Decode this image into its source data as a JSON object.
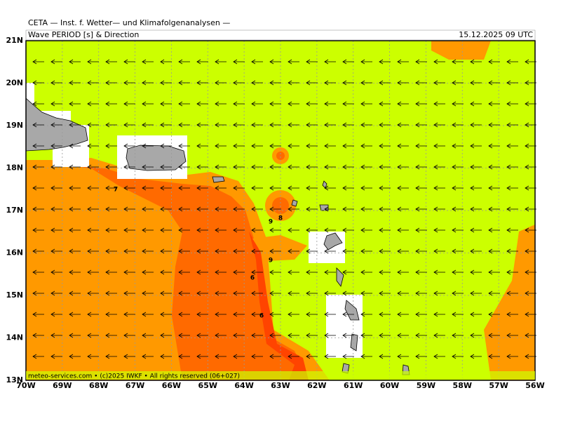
{
  "map": {
    "header": "CETA — Inst. f. Wetter— und Klimafolgenanalysen —",
    "title": "Wave PERIOD [s] & Direction",
    "timestamp": "15.12.2025 09 UTC",
    "footer": "meteo-services.com • (c)2025 IWKF • All rights reserved (06+027)",
    "lon_ticks": [
      {
        "value": -70,
        "label": "70W"
      },
      {
        "value": -69,
        "label": "69W"
      },
      {
        "value": -68,
        "label": "68W"
      },
      {
        "value": -67,
        "label": "67W"
      },
      {
        "value": -66,
        "label": "66W"
      },
      {
        "value": -65,
        "label": "65W"
      },
      {
        "value": -64,
        "label": "64W"
      },
      {
        "value": -63,
        "label": "63W"
      },
      {
        "value": -62,
        "label": "62W"
      },
      {
        "value": -61,
        "label": "61W"
      },
      {
        "value": -60,
        "label": "60W"
      },
      {
        "value": -59,
        "label": "59W"
      },
      {
        "value": -58,
        "label": "58W"
      },
      {
        "value": -57,
        "label": "57W"
      },
      {
        "value": -56,
        "label": "56W"
      }
    ],
    "lat_ticks": [
      {
        "value": 13,
        "label": "13N"
      },
      {
        "value": 14,
        "label": "14N"
      },
      {
        "value": 15,
        "label": "15N"
      },
      {
        "value": 16,
        "label": "16N"
      },
      {
        "value": 17,
        "label": "17N"
      },
      {
        "value": 18,
        "label": "18N"
      },
      {
        "value": 19,
        "label": "19N"
      },
      {
        "value": 20,
        "label": "20N"
      },
      {
        "value": 21,
        "label": "21N"
      }
    ],
    "lonlim": [
      -70,
      -56
    ],
    "latlim": [
      13,
      21
    ],
    "contour_labels": [
      7,
      9,
      8,
      9,
      6,
      6
    ]
  }
}
